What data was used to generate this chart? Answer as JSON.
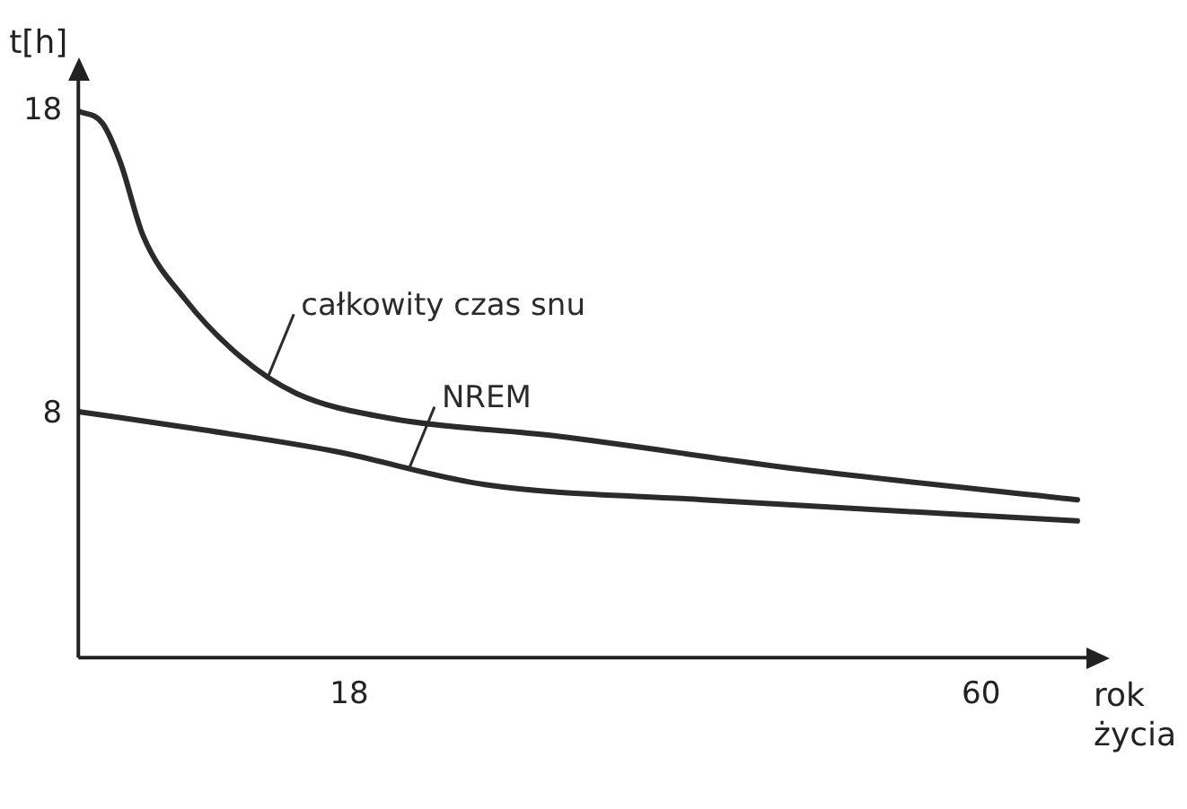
{
  "chart_data": {
    "type": "line",
    "xlabel": "rok życia",
    "ylabel": "t[h]",
    "xlim": [
      0,
      67
    ],
    "ylim": [
      0,
      19
    ],
    "xticks": [
      18,
      60
    ],
    "yticks": [
      8,
      18
    ],
    "grid": false,
    "legend": false,
    "marker": "none",
    "line_style": "solid",
    "series": [
      {
        "name": "całkowity czas snu",
        "color": "#2b2b2b",
        "x": [
          0,
          1.6,
          2.8,
          4.3,
          7.1,
          10.8,
          14.5,
          20.5,
          31.7,
          48,
          66.4
        ],
        "values": [
          18,
          17.6,
          16.3,
          13.9,
          11.8,
          9.9,
          8.7,
          7.9,
          7.3,
          6.2,
          5.2
        ]
      },
      {
        "name": "NREM",
        "color": "#2b2b2b",
        "x": [
          0,
          8.3,
          17,
          27,
          41.5,
          66.4
        ],
        "values": [
          8.1,
          7.5,
          6.8,
          5.7,
          5.2,
          4.5
        ]
      }
    ]
  }
}
